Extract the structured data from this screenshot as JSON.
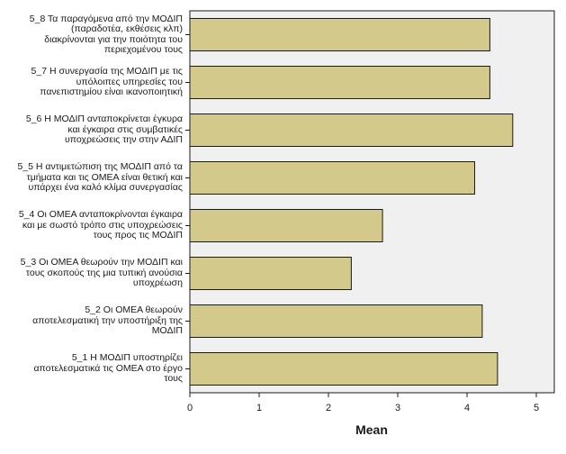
{
  "chart_data": {
    "type": "bar",
    "orientation": "horizontal",
    "categories": [
      "5_8  Τα παραγόμενα από την ΜΟΔΙΠ\n(παραδοτέα, εκθέσεις κλπ)\nδιακρίνονται για την ποιότητα του\nπεριεχομένου τους",
      "5_7  Η συνεργασία της ΜΟΔΙΠ με τις\nυπόλοιπες  υπηρεσίες του\nπανεπιστημίου είναι ικανοποιητική",
      "5_6  Η ΜΟΔΙΠ  ανταποκρίνεται έγκυρα\nκαι έγκαιρα στις συμβατικές\nυποχρεώσεις την στην ΑΔΙΠ",
      "5_5  Η αντιμετώπιση της ΜΟΔΙΠ από τα\nτμήματα και τις ΟΜΕΑ είναι θετική και\nυπάρχει ένα καλό κλίμα συνεργασίας",
      "5_4  Οι ΟΜΕΑ ανταποκρίνονται έγκαιρα\nκαι με σωστό τρόπο στις υποχρεώσεις\nτους προς τις ΜΟΔΙΠ",
      "5_3  Οι ΟΜΕΑ θεωρούν την ΜΟΔΙΠ και\nτους σκοπούς της μια τυπική ανούσια\nυποχρέωση",
      "5_2  Οι ΟΜΕΑ θεωρούν\nαποτελεσματική την υποστήριξη της\nΜΟΔΙΠ",
      "5_1  Η ΜΟΔΙΠ υποστηρίζει\nαποτελεσματικά τις ΟΜΕΑ στο έργο\nτους"
    ],
    "values": [
      4.33,
      4.33,
      4.66,
      4.11,
      2.78,
      2.33,
      4.22,
      4.44
    ],
    "xlabel": "Mean",
    "ylabel": "",
    "xlim": [
      0,
      5.25
    ],
    "xticks": [
      "0",
      "1",
      "2",
      "3",
      "4",
      "5"
    ],
    "grid": false,
    "colors": {
      "bar_fill": "#d2c98a",
      "bar_stroke": "#1a1a1a",
      "plot_background": "#f0f0f0",
      "axis": "#1a1a1a"
    }
  }
}
